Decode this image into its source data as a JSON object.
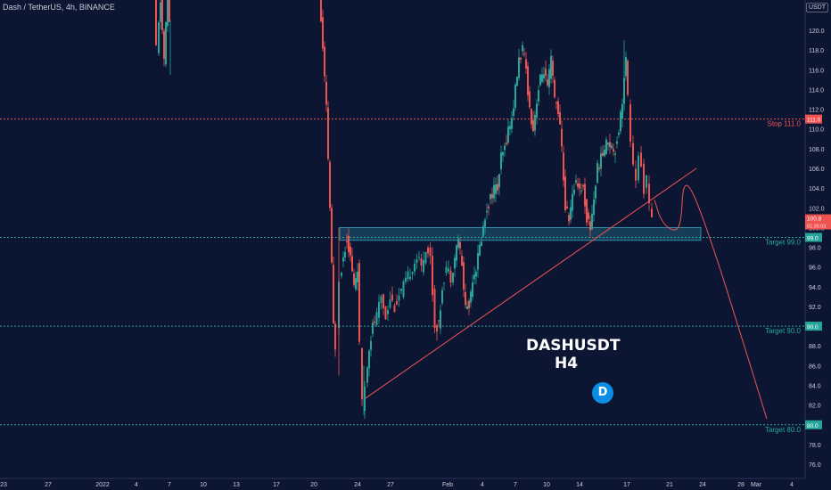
{
  "header": {
    "symbol_line": "Dash / TetherUS, 4h, BINANCE",
    "currency": "USDT"
  },
  "colors": {
    "background": "#0c1633",
    "up": "#26a69a",
    "down": "#ef5350",
    "zone": "#1f5c76",
    "stop": "#ef5350",
    "target": "#26a69a"
  },
  "badge": {
    "line1": "DASHUSDT",
    "line2": "H4",
    "logo_icon": "dash-logo-icon"
  },
  "chart_data": {
    "type": "candlestick",
    "ylim": [
      75,
      126
    ],
    "y_ticks": [
      "76.0",
      "78.0",
      "80.0",
      "82.0",
      "84.0",
      "86.0",
      "88.0",
      "90.0",
      "92.0",
      "94.0",
      "96.0",
      "98.0",
      "100.0",
      "102.0",
      "104.0",
      "106.0",
      "108.0",
      "110.0",
      "112.0",
      "114.0",
      "116.0",
      "118.0",
      "120.0",
      "122.0"
    ],
    "x_ticks": [
      "23",
      "27",
      "2022",
      "4",
      "7",
      "10",
      "13",
      "17",
      "20",
      "24",
      "27",
      "Feb",
      "4",
      "7",
      "10",
      "14",
      "17",
      "21",
      "24",
      "28",
      "Mar",
      "4"
    ],
    "current_price": {
      "value": 100.8,
      "label": "100.8",
      "countdown": "01:35:03"
    },
    "levels": [
      {
        "name": "stop",
        "value": 111.0,
        "label": "Stop 111.0",
        "axis_label": "111.0",
        "color": "#ef5350"
      },
      {
        "name": "target-99",
        "value": 99.0,
        "label": "Target 99.0",
        "axis_label": "99.0",
        "color": "#26a69a"
      },
      {
        "name": "target-90",
        "value": 90.0,
        "label": "Target 90.0",
        "axis_label": "90.0",
        "color": "#26a69a"
      },
      {
        "name": "target-80",
        "value": 80.0,
        "label": "Target 80.0",
        "axis_label": "80.0",
        "color": "#26a69a"
      }
    ],
    "support_zone": {
      "low": 98.7,
      "high": 100.0,
      "from_tick": "20",
      "to_tick": "24"
    },
    "trendline": {
      "from_price": 82.7,
      "to_price": 106.0
    },
    "projection": {
      "path_prices": [
        102.8,
        100.5,
        99.5,
        100.5,
        104.5,
        104.0,
        98.0,
        90.0,
        80.6
      ]
    },
    "candles_overview": [
      {
        "segment": "Jan 6-7",
        "high": 126.0,
        "low": 115.5
      },
      {
        "segment": "Jan 19-20",
        "high": 126.0,
        "low": 85.0
      },
      {
        "segment": "Jan 21-24 consolidation",
        "high": 100.5,
        "low": 81.0
      },
      {
        "segment": "Jan 25 - Feb 3 range",
        "high": 99.5,
        "low": 89.0
      },
      {
        "segment": "Feb 7 rally",
        "high": 118.5,
        "low": 97.0
      },
      {
        "segment": "Feb 12-14 pullback",
        "high": 113.0,
        "low": 99.0
      },
      {
        "segment": "Feb 17 high",
        "high": 119.0,
        "low": 103.0
      },
      {
        "segment": "Feb 19 last",
        "high": 106.0,
        "low": 100.3
      }
    ]
  }
}
